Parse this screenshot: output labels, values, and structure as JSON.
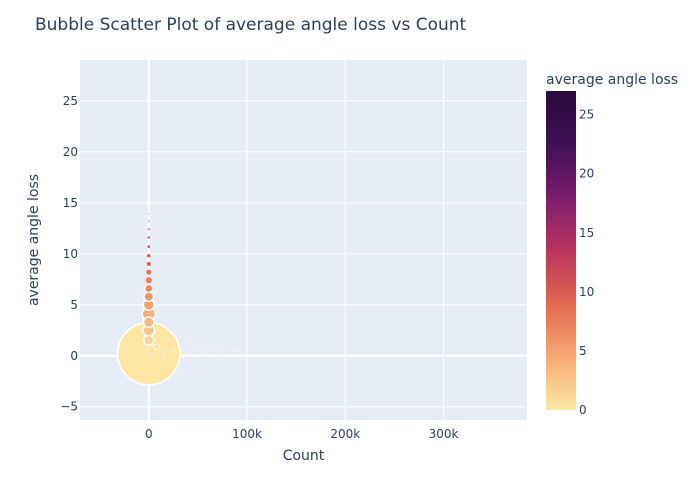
{
  "chart_data": {
    "type": "scatter",
    "title": "Bubble Scatter Plot of average angle loss vs Count",
    "xlabel": "Count",
    "ylabel": "average angle loss",
    "xlim": [
      -70000,
      385000
    ],
    "ylim": [
      -6.3,
      29
    ],
    "x_ticks": [
      0,
      100000,
      200000,
      300000
    ],
    "x_tick_labels": [
      "0",
      "100k",
      "200k",
      "300k"
    ],
    "y_ticks": [
      -5,
      0,
      5,
      10,
      15,
      20,
      25
    ],
    "y_tick_labels": [
      "−5",
      "0",
      "5",
      "10",
      "15",
      "20",
      "25"
    ],
    "grid": true,
    "colorbar": {
      "title": "average angle loss",
      "range": [
        0,
        27
      ],
      "ticks": [
        0,
        5,
        10,
        15,
        20,
        25
      ],
      "colorscale": [
        "#fde8a5",
        "#f7a974",
        "#e1684e",
        "#b9345f",
        "#7c1d6f",
        "#3f0f54",
        "#2b0a3d"
      ]
    },
    "series": [
      {
        "name": "points",
        "points": [
          {
            "x": 0,
            "y": 0.2,
            "size": 3200
          },
          {
            "x": 0,
            "y": 1.5,
            "size": 80
          },
          {
            "x": 0,
            "y": 2.5,
            "size": 110
          },
          {
            "x": 0,
            "y": 3.3,
            "size": 90
          },
          {
            "x": 0,
            "y": 4.1,
            "size": 140
          },
          {
            "x": 0,
            "y": 5.0,
            "size": 100
          },
          {
            "x": 0,
            "y": 5.8,
            "size": 75
          },
          {
            "x": 0,
            "y": 6.6,
            "size": 55
          },
          {
            "x": 0,
            "y": 7.4,
            "size": 40
          },
          {
            "x": 0,
            "y": 8.2,
            "size": 28
          },
          {
            "x": 0,
            "y": 9.0,
            "size": 20
          },
          {
            "x": 0,
            "y": 9.8,
            "size": 14
          },
          {
            "x": 0,
            "y": 10.7,
            "size": 10
          },
          {
            "x": 0,
            "y": 11.6,
            "size": 7
          },
          {
            "x": 0,
            "y": 12.4,
            "size": 5
          },
          {
            "x": 0,
            "y": 13.2,
            "size": 3
          },
          {
            "x": 0,
            "y": 13.9,
            "size": 2
          },
          {
            "x": 3000,
            "y": 0.5,
            "size": 50
          },
          {
            "x": 8000,
            "y": 0.9,
            "size": 22
          },
          {
            "x": 15000,
            "y": 0.2,
            "size": 18
          },
          {
            "x": 25000,
            "y": 0.6,
            "size": 12
          },
          {
            "x": 35000,
            "y": 0.3,
            "size": 8
          },
          {
            "x": 42000,
            "y": 1.4,
            "size": 4
          },
          {
            "x": 52000,
            "y": 0.3,
            "size": 5
          },
          {
            "x": 60000,
            "y": 0.1,
            "size": 4
          },
          {
            "x": 68000,
            "y": 0.5,
            "size": 3
          },
          {
            "x": 90000,
            "y": 0.5,
            "size": 2
          }
        ]
      }
    ]
  }
}
